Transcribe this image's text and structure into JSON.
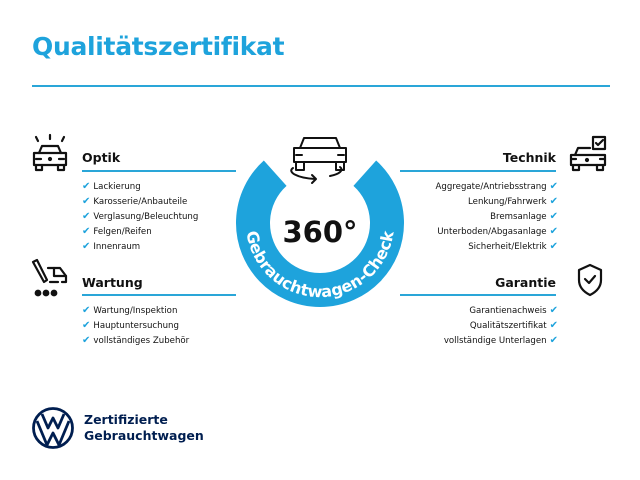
{
  "title": "Qualitätszertifikat",
  "brand_color": "#1ea3dc",
  "ring": {
    "value": "360°",
    "label": "Gebrauchtwagen-Check"
  },
  "sections": {
    "optik": {
      "heading": "Optik",
      "icon": "car-lights-icon",
      "items": [
        "Lackierung",
        "Karosserie/Anbauteile",
        "Verglasung/Beleuchtung",
        "Felgen/Reifen",
        "Innenraum"
      ]
    },
    "wartung": {
      "heading": "Wartung",
      "icon": "service-tools-icon",
      "items": [
        "Wartung/Inspektion",
        "Hauptuntersuchung",
        "vollständiges Zubehör"
      ]
    },
    "technik": {
      "heading": "Technik",
      "icon": "car-checkbox-icon",
      "items": [
        "Aggregate/Antriebsstrang",
        "Lenkung/Fahrwerk",
        "Bremsanlage",
        "Unterboden/Abgasanlage",
        "Sicherheit/Elektrik"
      ]
    },
    "garantie": {
      "heading": "Garantie",
      "icon": "shield-check-icon",
      "items": [
        "Garantienachweis",
        "Qualitätszertifikat",
        "vollständige Unterlagen"
      ]
    }
  },
  "check_glyph": "✔",
  "footer": {
    "line1": "Zertifizierte",
    "line2": "Gebrauchtwagen",
    "logo_color": "#001e50"
  }
}
